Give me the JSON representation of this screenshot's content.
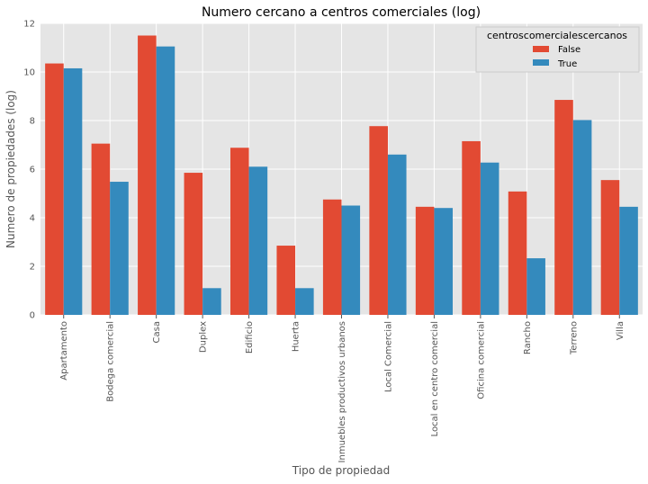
{
  "chart_data": {
    "type": "bar",
    "title": "Numero cercano a centros comerciales (log)",
    "xlabel": "Tipo de propiedad",
    "ylabel": "Numero de propiedades (log)",
    "ylim": [
      0,
      12
    ],
    "yticks": [
      0,
      2,
      4,
      6,
      8,
      10,
      12
    ],
    "grid": true,
    "legend_placement": "top-right",
    "legend_title": "centroscomercialescercanos",
    "categories": [
      "Apartamento",
      "Bodega comercial",
      "Casa",
      "Duplex",
      "Edificio",
      "Huerta",
      "Inmuebles productivos urbanos",
      "Local Comercial",
      "Local en centro comercial",
      "Oficina comercial",
      "Rancho",
      "Terreno",
      "Villa"
    ],
    "series": [
      {
        "name": "False",
        "color": "#E24A33",
        "values": [
          10.35,
          7.05,
          11.5,
          5.85,
          6.88,
          2.85,
          4.75,
          7.77,
          4.45,
          7.15,
          5.08,
          8.85,
          5.55
        ]
      },
      {
        "name": "True",
        "color": "#348ABD",
        "values": [
          10.15,
          5.48,
          11.05,
          1.1,
          6.1,
          1.1,
          4.5,
          6.6,
          4.4,
          6.27,
          2.33,
          8.02,
          4.45
        ]
      }
    ]
  }
}
